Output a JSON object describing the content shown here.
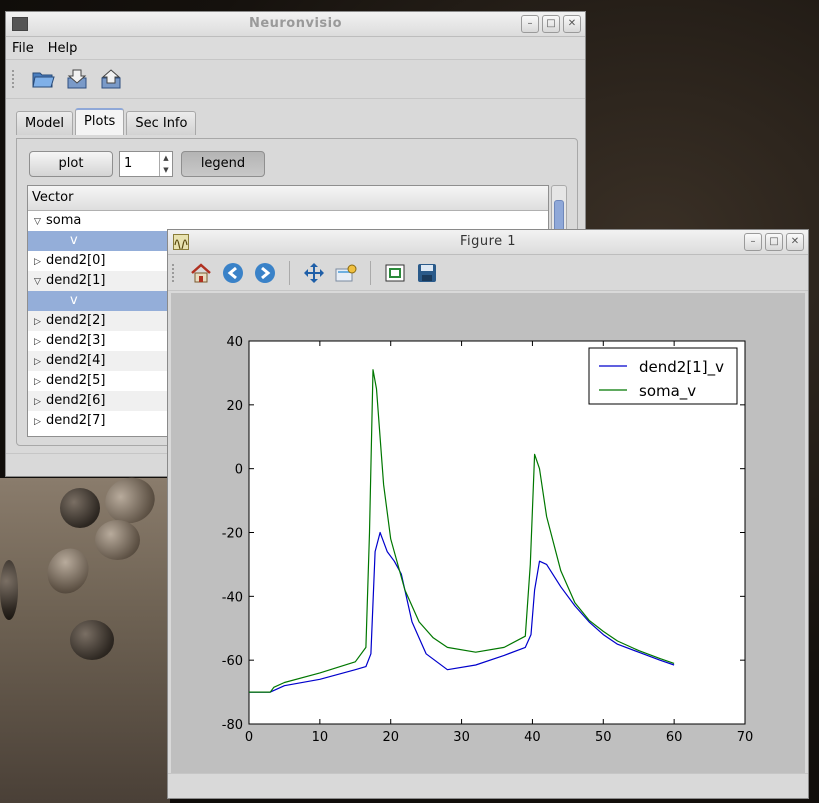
{
  "main_window": {
    "title": "Neuronvisio",
    "menu": [
      "File",
      "Help"
    ],
    "toolbar_icons": [
      "open-folder-icon",
      "load-icon",
      "save-icon"
    ],
    "tabs": [
      {
        "label": "Model",
        "active": false
      },
      {
        "label": "Plots",
        "active": true
      },
      {
        "label": "Sec Info",
        "active": false
      }
    ],
    "plot_button": "plot",
    "figure_number": "1",
    "legend_button": "legend",
    "tree": {
      "header": "Vector",
      "rows": [
        {
          "label": "soma",
          "expanded": true,
          "child": false,
          "selected": false
        },
        {
          "label": "v",
          "expanded": false,
          "child": true,
          "selected": true
        },
        {
          "label": "dend2[0]",
          "expanded": false,
          "child": false,
          "selected": false
        },
        {
          "label": "dend2[1]",
          "expanded": true,
          "child": false,
          "selected": false
        },
        {
          "label": "v",
          "expanded": false,
          "child": true,
          "selected": true
        },
        {
          "label": "dend2[2]",
          "expanded": false,
          "child": false,
          "selected": false
        },
        {
          "label": "dend2[3]",
          "expanded": false,
          "child": false,
          "selected": false
        },
        {
          "label": "dend2[4]",
          "expanded": false,
          "child": false,
          "selected": false
        },
        {
          "label": "dend2[5]",
          "expanded": false,
          "child": false,
          "selected": false
        },
        {
          "label": "dend2[6]",
          "expanded": false,
          "child": false,
          "selected": false
        },
        {
          "label": "dend2[7]",
          "expanded": false,
          "child": false,
          "selected": false
        }
      ]
    }
  },
  "figure_window": {
    "title": "Figure 1",
    "toolbar_icons": [
      "home-icon",
      "back-arrow-icon",
      "forward-arrow-icon",
      "pan-icon",
      "zoom-icon",
      "subplots-icon",
      "save-icon"
    ]
  },
  "chart_data": {
    "type": "line",
    "title": "",
    "xlabel": "",
    "ylabel": "",
    "xlim": [
      0,
      70
    ],
    "ylim": [
      -80,
      40
    ],
    "xticks": [
      0,
      10,
      20,
      30,
      40,
      50,
      60,
      70
    ],
    "yticks": [
      -80,
      -60,
      -40,
      -20,
      0,
      20,
      40
    ],
    "grid": false,
    "legend_position": "top-right",
    "series": [
      {
        "name": "dend2[1]_v",
        "color": "#0000cc",
        "x": [
          0,
          3,
          5,
          10,
          15,
          16.5,
          17.2,
          17.8,
          18.5,
          19.5,
          20.5,
          21.5,
          23,
          25,
          28,
          32,
          36,
          39,
          39.8,
          40.3,
          41,
          42,
          44,
          46,
          48,
          50,
          52,
          55,
          58,
          60
        ],
        "y": [
          -70,
          -70,
          -68,
          -66,
          -63,
          -62,
          -58,
          -26,
          -20,
          -26,
          -29,
          -33,
          -48,
          -58,
          -63,
          -61.5,
          -58.5,
          -56,
          -52,
          -38,
          -29,
          -30,
          -37,
          -43,
          -48,
          -52,
          -55,
          -57.5,
          -60,
          -61.5
        ]
      },
      {
        "name": "soma_v",
        "color": "#007700",
        "x": [
          0,
          3,
          3.5,
          5,
          10,
          15,
          16.5,
          17,
          17.5,
          18,
          19,
          20,
          22,
          24,
          26,
          28,
          32,
          36,
          39,
          39.7,
          40.3,
          41,
          42,
          44,
          46,
          48,
          50,
          52,
          55,
          58,
          60
        ],
        "y": [
          -70,
          -70,
          -68.5,
          -67,
          -64,
          -60.5,
          -56,
          -20,
          31,
          25,
          -5,
          -22,
          -38,
          -48,
          -53,
          -56,
          -57.5,
          -56,
          -52.5,
          -30,
          4.5,
          0,
          -15,
          -32,
          -42,
          -47.5,
          -51,
          -54,
          -57,
          -59.5,
          -61
        ]
      }
    ]
  }
}
